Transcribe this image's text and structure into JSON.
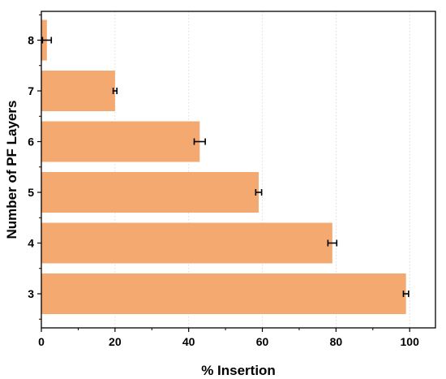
{
  "chart_data": {
    "type": "bar",
    "orientation": "horizontal",
    "categories": [
      "3",
      "4",
      "5",
      "6",
      "7",
      "8"
    ],
    "values": [
      99,
      79,
      59,
      43,
      20,
      1.5
    ],
    "errors": [
      0.7,
      1.2,
      0.8,
      1.5,
      0.5,
      1.2
    ],
    "xlabel": "% Insertion",
    "ylabel": "Number of PF Layers",
    "xlim": [
      0,
      107
    ],
    "xticks": [
      0,
      20,
      40,
      60,
      80,
      100
    ],
    "grid": "dotted vertical",
    "bar_color": "#f4a970"
  }
}
